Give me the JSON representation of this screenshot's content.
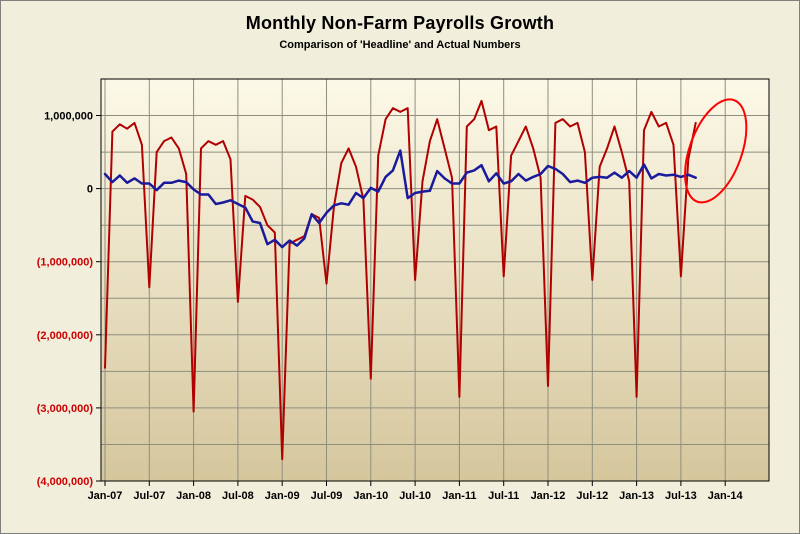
{
  "window": {
    "background_color": "#F1EEDC",
    "border_color": "#7F7F7F"
  },
  "chart_data": {
    "type": "line",
    "title": "Monthly Non-Farm Payrolls Growth",
    "subtitle": "Comparison of 'Headline' and Actual Numbers",
    "frequency": "monthly",
    "x_start": "Jan-07",
    "x_end": "Sep-13",
    "x_tick_labels": [
      "Jan-07",
      "Jul-07",
      "Jan-08",
      "Jul-08",
      "Jan-09",
      "Jul-09",
      "Jan-10",
      "Jul-10",
      "Jan-11",
      "Jul-11",
      "Jan-12",
      "Jul-12",
      "Jan-13",
      "Jul-13",
      "Jan-14"
    ],
    "y_ticks": [
      {
        "label": "1,000,000",
        "value": 1000000
      },
      {
        "label": "0",
        "value": 0
      },
      {
        "label": "(1,000,000)",
        "value": -1000000
      },
      {
        "label": "(2,000,000)",
        "value": -2000000
      },
      {
        "label": "(3,000,000)",
        "value": -3000000
      },
      {
        "label": "(4,000,000)",
        "value": -4000000
      }
    ],
    "ylim": [
      -4000000,
      1500000
    ],
    "gridline_step": 500000,
    "grid": true,
    "legend_position": "none",
    "series": [
      {
        "name": "Actual",
        "color": "#B00000",
        "values": [
          -2450000,
          780000,
          880000,
          820000,
          900000,
          600000,
          -1350000,
          500000,
          650000,
          700000,
          550000,
          200000,
          -3050000,
          550000,
          650000,
          600000,
          650000,
          400000,
          -1550000,
          -100000,
          -150000,
          -250000,
          -500000,
          -600000,
          -3700000,
          -750000,
          -700000,
          -650000,
          -350000,
          -400000,
          -1300000,
          -250000,
          350000,
          550000,
          300000,
          -150000,
          -2600000,
          450000,
          950000,
          1100000,
          1050000,
          1100000,
          -1250000,
          100000,
          650000,
          950000,
          550000,
          150000,
          -2850000,
          850000,
          950000,
          1200000,
          800000,
          850000,
          -1200000,
          450000,
          650000,
          850000,
          550000,
          150000,
          -2700000,
          900000,
          950000,
          850000,
          900000,
          500000,
          -1250000,
          300000,
          550000,
          850000,
          500000,
          100000,
          -2850000,
          800000,
          1050000,
          850000,
          900000,
          600000,
          -1200000,
          400000,
          900000
        ]
      },
      {
        "name": "Headline",
        "color": "#1A1A9C",
        "values": [
          200000,
          90000,
          180000,
          80000,
          140000,
          70000,
          70000,
          -20000,
          80000,
          80000,
          110000,
          90000,
          -10000,
          -80000,
          -80000,
          -210000,
          -190000,
          -160000,
          -210000,
          -260000,
          -450000,
          -470000,
          -760000,
          -700000,
          -800000,
          -710000,
          -780000,
          -680000,
          -350000,
          -470000,
          -330000,
          -230000,
          -200000,
          -220000,
          -60000,
          -130000,
          10000,
          -40000,
          160000,
          250000,
          520000,
          -130000,
          -60000,
          -40000,
          -30000,
          240000,
          140000,
          70000,
          70000,
          220000,
          250000,
          320000,
          100000,
          210000,
          70000,
          100000,
          200000,
          110000,
          160000,
          200000,
          310000,
          270000,
          200000,
          90000,
          110000,
          80000,
          150000,
          160000,
          150000,
          220000,
          150000,
          240000,
          150000,
          330000,
          140000,
          200000,
          180000,
          190000,
          160000,
          190000,
          150000
        ]
      }
    ],
    "annotations": [
      {
        "type": "ellipse",
        "target": "last point of Actual series",
        "color": "#FF0000"
      }
    ],
    "styles": {
      "positive_tick_color": "#000000",
      "negative_tick_color": "#CC0000",
      "grid_color": "#8F8F80",
      "plot_border_color": "#000000",
      "plot_bg_top": "#FCF9E8",
      "plot_bg_bottom": "#D5C69C"
    }
  }
}
